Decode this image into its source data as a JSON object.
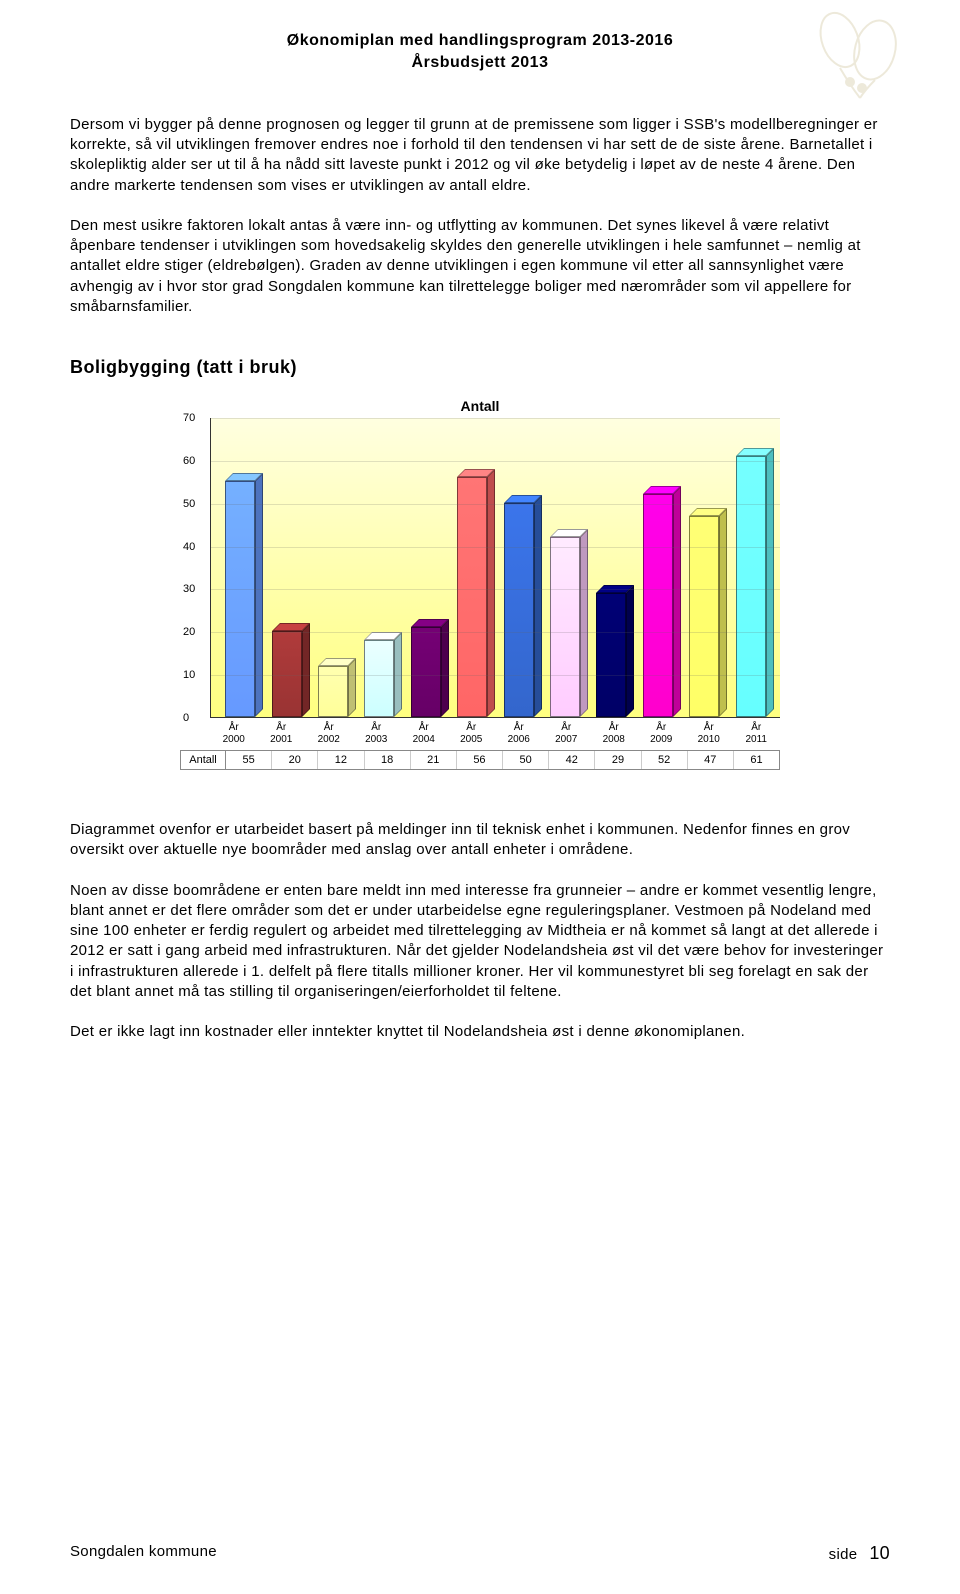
{
  "header": {
    "line1": "Økonomiplan med handlingsprogram 2013-2016",
    "line2": "Årsbudsjett 2013"
  },
  "paragraphs": {
    "p1": "Dersom vi bygger på denne prognosen og legger til grunn at de premissene som ligger i SSB's modellberegninger er korrekte, så vil utviklingen fremover endres noe i forhold til den tendensen vi har sett de de siste årene. Barnetallet i skolepliktig alder ser ut til å ha nådd sitt laveste punkt i 2012 og vil øke betydelig i løpet av de neste 4 årene. Den andre markerte tendensen som vises er utviklingen av antall eldre.",
    "p2": "Den mest usikre faktoren lokalt antas å være inn- og utflytting av kommunen. Det synes likevel å være relativt åpenbare tendenser i utviklingen som hovedsakelig skyldes den generelle utviklingen i hele samfunnet – nemlig at antallet eldre stiger (eldrebølgen). Graden av denne utviklingen i egen kommune vil etter all sannsynlighet være avhengig av i hvor stor grad Songdalen kommune kan tilrettelegge boliger med nærområder som vil appellere for småbarnsfamilier.",
    "p3": "Diagrammet ovenfor er utarbeidet basert på meldinger inn til teknisk enhet i kommunen. Nedenfor finnes en grov oversikt over aktuelle nye boområder med anslag over antall enheter i områdene.",
    "p4": "Noen av disse boområdene er enten bare meldt inn med interesse fra grunneier – andre er kommet vesentlig lengre, blant annet er det flere områder som det er under utarbeidelse egne reguleringsplaner. Vestmoen på Nodeland med sine 100 enheter er ferdig regulert og arbeidet med tilrettelegging av Midtheia er nå kommet så langt at det allerede i 2012 er satt i gang arbeid med infrastrukturen. Når det gjelder Nodelandsheia øst vil det være behov for investeringer i infrastrukturen allerede i 1. delfelt på flere titalls millioner kroner. Her vil kommunestyret bli seg forelagt en sak der det blant annet må tas stilling til organiseringen/eierforholdet til feltene.",
    "p5": "Det er ikke lagt inn kostnader eller inntekter knyttet til Nodelandsheia øst i denne økonomiplanen."
  },
  "section_title": "Boligbygging (tatt i bruk)",
  "chart": {
    "title": "Antall",
    "ymax": 70,
    "ytick_step": 10,
    "yticks": [
      0,
      10,
      20,
      30,
      40,
      50,
      60,
      70
    ],
    "categories": [
      "År 2000",
      "År 2001",
      "År 2002",
      "År 2003",
      "År 2004",
      "År 2005",
      "År 2006",
      "År 2007",
      "År 2008",
      "År 2009",
      "År 2010",
      "År 2011"
    ],
    "values": [
      55,
      20,
      12,
      18,
      21,
      56,
      50,
      42,
      29,
      52,
      47,
      61
    ],
    "bar_colors": [
      "#6699ff",
      "#993333",
      "#ffff99",
      "#ccffff",
      "#660066",
      "#ff6666",
      "#3366cc",
      "#ffccff",
      "#000066",
      "#ff00cc",
      "#ffff66",
      "#66ffff"
    ],
    "row_label": "Antall"
  },
  "footer": {
    "left": "Songdalen kommune",
    "right_label": "side",
    "page": "10"
  }
}
